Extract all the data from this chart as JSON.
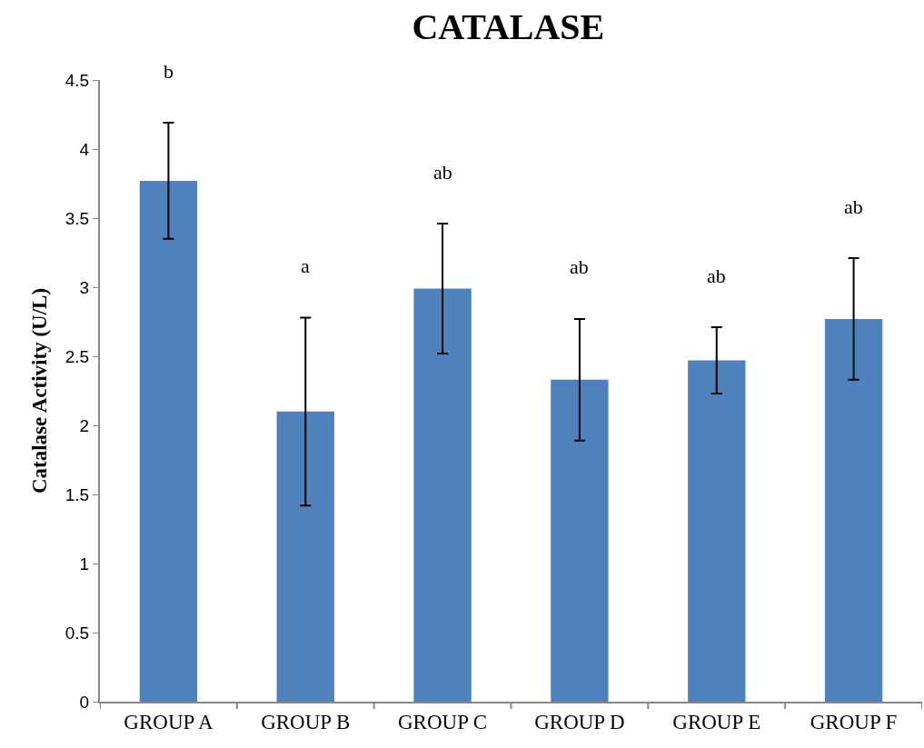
{
  "chart_data": {
    "type": "bar",
    "title": "CATALASE",
    "ylabel": "Catalase Activity (U/L)",
    "categories": [
      "GROUP A",
      "GROUP B",
      "GROUP C",
      "GROUP D",
      "GROUP E",
      "GROUP F"
    ],
    "values": [
      3.77,
      2.1,
      2.99,
      2.33,
      2.47,
      2.77
    ],
    "errors": [
      0.42,
      0.68,
      0.47,
      0.44,
      0.24,
      0.44
    ],
    "color": "#4f81bd",
    "ylim": [
      0,
      4.5
    ],
    "yticks": [
      0,
      0.5,
      1,
      1.5,
      2,
      2.5,
      3,
      3.5,
      4,
      4.5
    ],
    "grid": false,
    "annotations": [
      "b",
      "a",
      "ab",
      "ab",
      "ab",
      "ab"
    ]
  }
}
